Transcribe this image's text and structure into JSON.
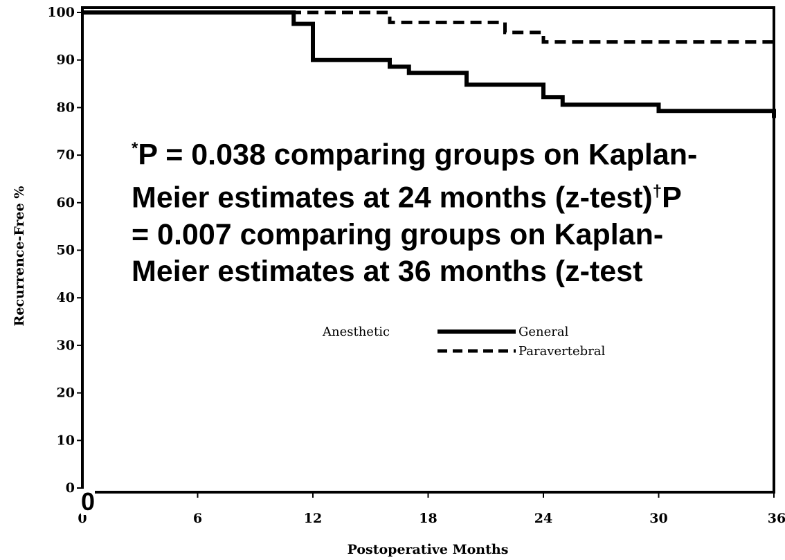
{
  "chart_data": {
    "type": "line",
    "xlabel": "Postoperative Months",
    "ylabel": "Recurrence-Free %",
    "xlim": [
      0,
      36
    ],
    "ylim": [
      0,
      100
    ],
    "xticks": [
      0,
      6,
      12,
      18,
      24,
      30,
      36
    ],
    "yticks": [
      0,
      10,
      20,
      30,
      40,
      50,
      60,
      70,
      80,
      90,
      100
    ],
    "grid": false,
    "legend": {
      "title": "Anesthetic",
      "placement": "center",
      "entries": [
        "General",
        "Paravertebral"
      ]
    },
    "series": [
      {
        "name": "General",
        "style": "solid",
        "color": "#000000",
        "x": [
          0,
          11,
          12,
          16,
          17,
          20,
          24,
          25,
          30,
          36
        ],
        "y": [
          100,
          97.6,
          90,
          88.6,
          87.3,
          84.8,
          82.2,
          80.6,
          79.3,
          77.8
        ]
      },
      {
        "name": "Paravertebral",
        "style": "dashed",
        "color": "#000000",
        "x": [
          0,
          11,
          16,
          22,
          24,
          36
        ],
        "y": [
          100,
          100,
          97.9,
          95.8,
          93.8,
          93.8
        ]
      }
    ]
  },
  "annotation": {
    "sup1": "*",
    "part1": "P = 0.038 comparing groups on Kaplan-\nMeier estimates at 24 months (z-test)",
    "sup2": "†",
    "part2": "P\n= 0.007 comparing groups on Kaplan-\nMeier estimates at 36 months (z-test"
  },
  "overlay_zero": "0"
}
